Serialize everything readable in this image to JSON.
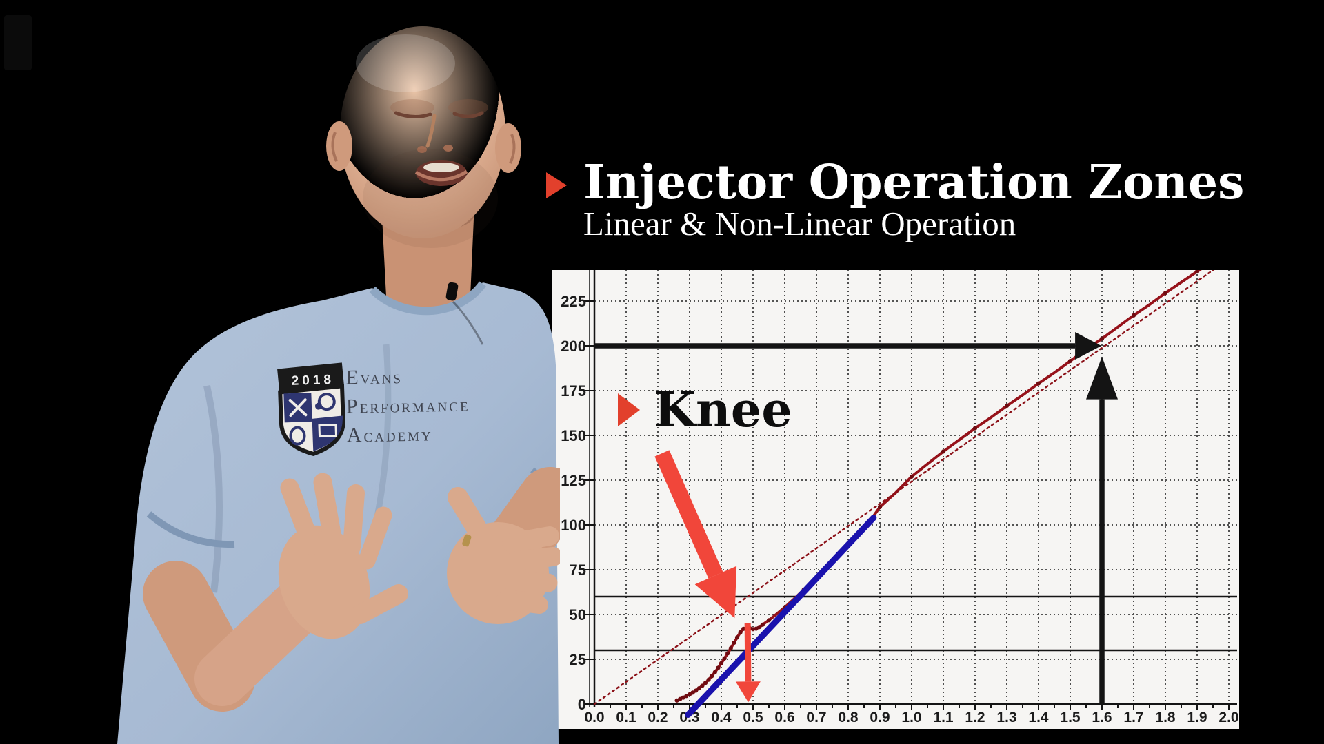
{
  "page": {
    "background": "#000000"
  },
  "title_block": {
    "title": "Injector Operation Zones",
    "subtitle": "Linear & Non-Linear Operation",
    "bullet_color": "#e2402c"
  },
  "knee_callout": {
    "label": "Knee",
    "bullet_color": "#e2402c"
  },
  "person": {
    "shirt_logo": {
      "year": "2018",
      "line1": "EVANS",
      "line2": "PERFORMANCE",
      "line3": "ACADEMY"
    }
  },
  "colors": {
    "background": "#000000",
    "accent_red": "#e2402c",
    "arrow_red": "#f1463a",
    "curve_dark_red": "#96121a",
    "curve_marker": "#6f0b10",
    "fit_blue": "#1a12ad",
    "panel_bg": "#f6f5f3",
    "grid": "#3d3d3d",
    "axis_black": "#141414",
    "shirt_blue": "#a7bad3",
    "skin": "#d6a388"
  },
  "chart_data": {
    "type": "line",
    "title": "",
    "xlabel": "",
    "ylabel": "",
    "xlim": [
      0,
      2.03
    ],
    "ylim": [
      0,
      242
    ],
    "grid": true,
    "x_tick_labels": [
      "0.0",
      "0.1",
      "0.2",
      "0.3",
      "0.4",
      "0.5",
      "0.6",
      "0.7",
      "0.8",
      "0.9",
      "1.0",
      "1.1",
      "1.2",
      "1.3",
      "1.4",
      "1.5",
      "1.6",
      "1.7",
      "1.8",
      "1.9",
      "2.0"
    ],
    "y_ticks": [
      0,
      25,
      50,
      75,
      100,
      125,
      150,
      175,
      200,
      225
    ],
    "series": [
      {
        "name": "measured-injector-flow",
        "style": "solid",
        "width": 4,
        "color": "#96121a",
        "marker_color": "#6f0b10",
        "markers": true,
        "points": [
          [
            0.26,
            2
          ],
          [
            0.27,
            2.8
          ],
          [
            0.28,
            3.6
          ],
          [
            0.29,
            4.5
          ],
          [
            0.3,
            5.4
          ],
          [
            0.31,
            6.4
          ],
          [
            0.32,
            7.5
          ],
          [
            0.33,
            8.8
          ],
          [
            0.34,
            10.2
          ],
          [
            0.35,
            11.8
          ],
          [
            0.36,
            13.6
          ],
          [
            0.37,
            15.6
          ],
          [
            0.38,
            17.8
          ],
          [
            0.39,
            20.2
          ],
          [
            0.4,
            22.8
          ],
          [
            0.41,
            25.5
          ],
          [
            0.42,
            28.3
          ],
          [
            0.43,
            31.2
          ],
          [
            0.44,
            34.2
          ],
          [
            0.45,
            37.2
          ],
          [
            0.46,
            40
          ],
          [
            0.47,
            42
          ],
          [
            0.48,
            42.8
          ],
          [
            0.49,
            42.3
          ],
          [
            0.5,
            41.8
          ],
          [
            0.51,
            42.1
          ],
          [
            0.52,
            43
          ],
          [
            0.53,
            44.3
          ],
          [
            0.55,
            46.8
          ],
          [
            0.57,
            49.6
          ],
          [
            0.6,
            54
          ],
          [
            0.63,
            58.8
          ],
          [
            0.66,
            63.8
          ],
          [
            0.7,
            70.5
          ],
          [
            0.74,
            77.5
          ],
          [
            0.78,
            84.5
          ],
          [
            0.82,
            92
          ],
          [
            0.85,
            98
          ],
          [
            0.87,
            102.5
          ],
          [
            0.88,
            105
          ],
          [
            0.9,
            110
          ],
          [
            0.95,
            118
          ],
          [
            1.0,
            127
          ],
          [
            1.05,
            134
          ],
          [
            1.1,
            141
          ],
          [
            1.15,
            147.5
          ],
          [
            1.2,
            154
          ],
          [
            1.25,
            160
          ],
          [
            1.3,
            166.5
          ],
          [
            1.35,
            172.5
          ],
          [
            1.4,
            179
          ],
          [
            1.45,
            185
          ],
          [
            1.5,
            191.5
          ],
          [
            1.55,
            198
          ],
          [
            1.6,
            204
          ],
          [
            1.65,
            210.5
          ],
          [
            1.7,
            217
          ],
          [
            1.75,
            223
          ],
          [
            1.8,
            229.5
          ],
          [
            1.85,
            235.5
          ],
          [
            1.9,
            241.5
          ],
          [
            1.93,
            245
          ]
        ]
      },
      {
        "name": "linear-extrapolation-dotted",
        "style": "dotted",
        "width": 2.5,
        "color": "#8c1118",
        "points": [
          [
            0,
            0
          ],
          [
            2.02,
            251
          ]
        ]
      },
      {
        "name": "linear-fit-blue",
        "style": "solid",
        "width": 9,
        "color": "#1a12ad",
        "points": [
          [
            0.295,
            -6
          ],
          [
            0.88,
            104
          ]
        ]
      }
    ],
    "reference_lines": [
      {
        "name": "ref-line-60",
        "y": 60,
        "color": "#141414",
        "width": 2.5
      },
      {
        "name": "ref-line-30",
        "y": 30,
        "color": "#141414",
        "width": 2.5
      }
    ],
    "annotations": [
      {
        "name": "target-flow-arrow",
        "type": "arrow",
        "from": [
          0,
          200
        ],
        "to": [
          1.598,
          200
        ],
        "shaft": 7.5,
        "head_l": 38,
        "head_w": 20,
        "color": "#141414"
      },
      {
        "name": "pulse-width-arrow",
        "type": "arrow",
        "from": [
          1.6,
          0
        ],
        "to": [
          1.6,
          194
        ],
        "shaft": 7.5,
        "head_l": 62,
        "head_w": 23,
        "color": "#141414"
      },
      {
        "name": "knee-pointer-arrow",
        "type": "arrow",
        "from": [
          0.213,
          140
        ],
        "to": [
          0.442,
          48
        ],
        "shaft": 23,
        "head_l": 68,
        "head_w": 33,
        "color": "#f1463a"
      },
      {
        "name": "knee-dropline-arrow",
        "type": "arrow",
        "from": [
          0.483,
          45
        ],
        "to": [
          0.485,
          1
        ],
        "shaft": 9,
        "head_l": 30,
        "head_w": 18,
        "color": "#f1463a"
      }
    ],
    "legend": null
  }
}
